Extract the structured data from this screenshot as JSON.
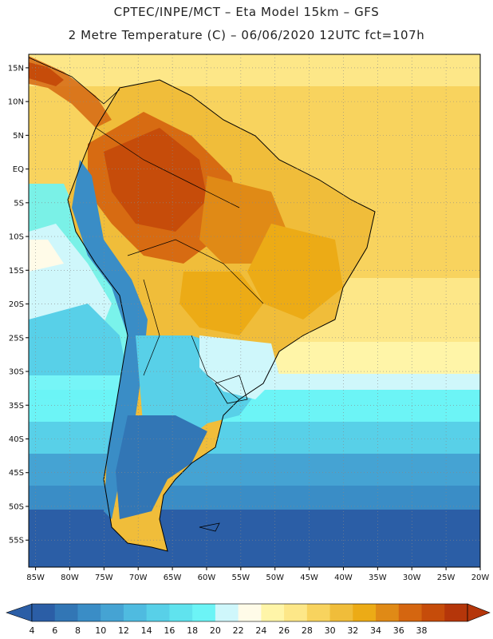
{
  "header": {
    "line1": "CPTEC/INPE/MCT –  Eta Model 15km – GFS",
    "line2": "2 Metre Temperature (C) – 06/06/2020 12UTC fct=107h"
  },
  "map": {
    "lat_range": [
      -59,
      17
    ],
    "lon_range": [
      -86,
      -20
    ],
    "lat_ticks": [
      "15N",
      "10N",
      "5N",
      "EQ",
      "5S",
      "10S",
      "15S",
      "20S",
      "25S",
      "30S",
      "35S",
      "40S",
      "45S",
      "50S",
      "55S"
    ],
    "lon_ticks": [
      "85W",
      "80W",
      "75W",
      "70W",
      "65W",
      "60W",
      "55W",
      "50W",
      "45W",
      "40W",
      "35W",
      "30W",
      "25W",
      "20W"
    ],
    "grid": "dotted"
  },
  "colorbar": {
    "labels": [
      "4",
      "6",
      "8",
      "10",
      "12",
      "14",
      "16",
      "18",
      "20",
      "22",
      "24",
      "26",
      "28",
      "30",
      "32",
      "34",
      "36",
      "38"
    ],
    "colors": [
      "#2b5ea6",
      "#3276b5",
      "#3a8dc6",
      "#45a3d3",
      "#4fbbe0",
      "#58d0e8",
      "#60e3ee",
      "#6cf4f6",
      "#cff7fb",
      "#fffbe8",
      "#fff5a8",
      "#fde788",
      "#f8d35e",
      "#f0bd3a",
      "#ecab16",
      "#e08a16",
      "#d56610",
      "#c64c0a",
      "#b5360a"
    ],
    "low_arrow_color": "#2b5ea6",
    "high_arrow_color": "#b5360a"
  }
}
